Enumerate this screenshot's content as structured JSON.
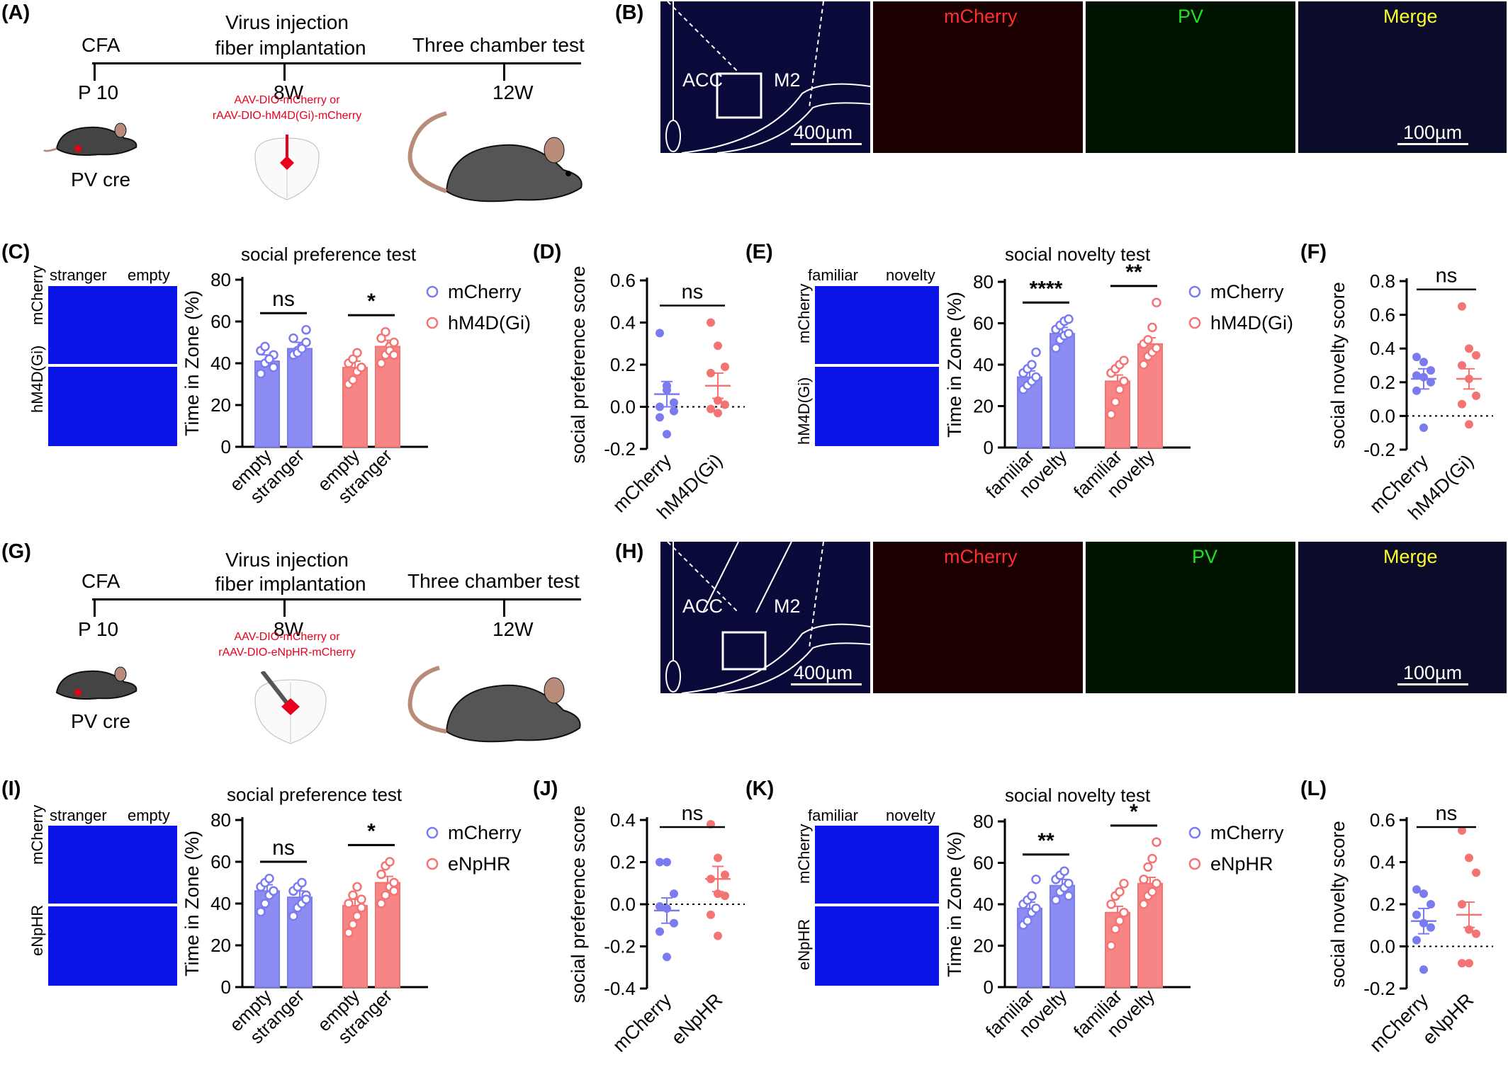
{
  "panels": {
    "A": "(A)",
    "B": "(B)",
    "C": "(C)",
    "D": "(D)",
    "E": "(E)",
    "F": "(F)",
    "G": "(G)",
    "H": "(H)",
    "I": "(I)",
    "J": "(J)",
    "K": "(K)",
    "L": "(L)"
  },
  "timelineA": {
    "cfa": "CFA",
    "p10": "P 10",
    "virus_line1": "Virus injection",
    "virus_line2": "fiber implantation",
    "w8": "8W",
    "three": "Three chamber test",
    "w12": "12W",
    "aav1": "AAV-DIO-mCherry or",
    "aav2": "rAAV-DIO-hM4D(Gi)-mCherry",
    "pvcre": "PV cre"
  },
  "timelineG": {
    "cfa": "CFA",
    "p10": "P 10",
    "virus_line1": "Virus injection",
    "virus_line2": "fiber implantation",
    "w8": "8W",
    "three": "Three chamber test",
    "w12": "12W",
    "aav1": "AAV-DIO-mCherry or",
    "aav2": "rAAV-DIO-eNpHR-mCherry",
    "pvcre": "PV cre"
  },
  "micro": {
    "acc": "ACC",
    "m2": "M2",
    "scale1": "400µm",
    "mcherry": "mCherry",
    "pv": "PV",
    "merge": "Merge",
    "scale2": "100µm"
  },
  "heatC": {
    "left": "stranger",
    "right": "empty",
    "top": "mCherry",
    "bottom": "hM4D(Gi)"
  },
  "heatE": {
    "left": "familiar",
    "right": "novelty",
    "top": "mCherry",
    "bottom": "hM4D(Gi)"
  },
  "heatI": {
    "left": "stranger",
    "right": "empty",
    "top": "mCherry",
    "bottom": "eNpHR"
  },
  "heatK": {
    "left": "familiar",
    "right": "novelty",
    "top": "mCherry",
    "bottom": "eNpHR"
  },
  "colors": {
    "blue": "#7b7bf0",
    "red": "#f47474",
    "blue_fill": "#8c8cf2",
    "red_fill": "#f78585"
  },
  "chart_data": [
    {
      "id": "C",
      "type": "bar",
      "title": "social preference test",
      "ylabel": "Time in Zone (%)",
      "ylim": [
        0,
        80
      ],
      "yticks": [
        0,
        20,
        40,
        60,
        80
      ],
      "categories": [
        "empty",
        "stranger",
        "empty",
        "stranger"
      ],
      "groups": [
        {
          "name": "mCherry",
          "color": "blue",
          "means": [
            41,
            47
          ]
        },
        {
          "name": "hM4D(Gi)",
          "color": "red",
          "means": [
            38,
            48
          ]
        }
      ],
      "points": [
        [
          35,
          40,
          42,
          44,
          46,
          48,
          42,
          38
        ],
        [
          44,
          46,
          48,
          50,
          52,
          45,
          47,
          56
        ],
        [
          30,
          32,
          36,
          38,
          40,
          42,
          45,
          38
        ],
        [
          40,
          44,
          48,
          50,
          52,
          55,
          46,
          44
        ]
      ],
      "sig": [
        "ns",
        "*"
      ]
    },
    {
      "id": "D",
      "type": "scatter",
      "ylabel": "social preference score",
      "ylim": [
        -0.2,
        0.6
      ],
      "yticks": [
        -0.2,
        0.0,
        0.2,
        0.4,
        0.6
      ],
      "categories": [
        "mCherry",
        "hM4D(Gi)"
      ],
      "means": [
        0.06,
        0.1
      ],
      "points": [
        [
          0.35,
          0.08,
          0.02,
          0.0,
          0.1,
          -0.02,
          -0.05,
          -0.13
        ],
        [
          0.4,
          0.29,
          0.19,
          0.16,
          0.03,
          0.01,
          -0.01,
          -0.03
        ]
      ],
      "sig": "ns"
    },
    {
      "id": "E",
      "type": "bar",
      "title": "social novelty test",
      "ylabel": "Time in Zone (%)",
      "ylim": [
        0,
        80
      ],
      "yticks": [
        0,
        20,
        40,
        60,
        80
      ],
      "categories": [
        "familiar",
        "novelty",
        "familiar",
        "novelty"
      ],
      "groups": [
        {
          "name": "mCherry",
          "color": "blue",
          "means": [
            34,
            55
          ]
        },
        {
          "name": "hM4D(Gi)",
          "color": "red",
          "means": [
            32,
            50
          ]
        }
      ],
      "points": [
        [
          28,
          30,
          32,
          34,
          36,
          38,
          40,
          46
        ],
        [
          48,
          52,
          54,
          55,
          57,
          59,
          61,
          62
        ],
        [
          16,
          22,
          28,
          32,
          36,
          38,
          40,
          42
        ],
        [
          40,
          44,
          46,
          48,
          50,
          52,
          58,
          70
        ]
      ],
      "sig": [
        "****",
        "**"
      ]
    },
    {
      "id": "F",
      "type": "scatter",
      "ylabel": "social novelty score",
      "ylim": [
        -0.2,
        0.8
      ],
      "yticks": [
        -0.2,
        0.0,
        0.2,
        0.4,
        0.6,
        0.8
      ],
      "categories": [
        "mCherry",
        "hM4D(Gi)"
      ],
      "means": [
        0.22,
        0.22
      ],
      "points": [
        [
          0.35,
          0.32,
          0.27,
          0.24,
          0.23,
          0.2,
          0.15,
          -0.07
        ],
        [
          0.65,
          0.4,
          0.36,
          0.3,
          0.22,
          0.12,
          0.07,
          -0.05
        ]
      ],
      "sig": "ns"
    },
    {
      "id": "I",
      "type": "bar",
      "title": "social preference test",
      "ylabel": "Time in Zone (%)",
      "ylim": [
        0,
        80
      ],
      "yticks": [
        0,
        20,
        40,
        60,
        80
      ],
      "categories": [
        "empty",
        "stranger",
        "empty",
        "stranger"
      ],
      "groups": [
        {
          "name": "mCherry",
          "color": "blue",
          "means": [
            46,
            43
          ]
        },
        {
          "name": "eNpHR",
          "color": "red",
          "means": [
            39,
            50
          ]
        }
      ],
      "points": [
        [
          36,
          40,
          44,
          46,
          48,
          50,
          52,
          46
        ],
        [
          34,
          38,
          40,
          44,
          46,
          48,
          50,
          42
        ],
        [
          26,
          30,
          34,
          38,
          40,
          44,
          48,
          42
        ],
        [
          40,
          44,
          48,
          50,
          54,
          58,
          60,
          46
        ]
      ],
      "sig": [
        "ns",
        "*"
      ]
    },
    {
      "id": "J",
      "type": "scatter",
      "ylabel": "social preference score",
      "ylim": [
        -0.4,
        0.4
      ],
      "yticks": [
        -0.4,
        -0.2,
        0.0,
        0.2,
        0.4
      ],
      "categories": [
        "mCherry",
        "eNpHR"
      ],
      "means": [
        -0.03,
        0.12
      ],
      "points": [
        [
          0.2,
          0.2,
          0.05,
          -0.01,
          -0.02,
          -0.09,
          -0.13,
          -0.25
        ],
        [
          0.38,
          0.22,
          0.14,
          0.12,
          0.05,
          0.04,
          -0.05,
          -0.15
        ]
      ],
      "sig": "ns"
    },
    {
      "id": "K",
      "type": "bar",
      "title": "social novelty test",
      "ylabel": "Time in Zone (%)",
      "ylim": [
        0,
        80
      ],
      "yticks": [
        0,
        20,
        40,
        60,
        80
      ],
      "categories": [
        "familiar",
        "novelty",
        "familiar",
        "novelty"
      ],
      "groups": [
        {
          "name": "mCherry",
          "color": "blue",
          "means": [
            38,
            49
          ]
        },
        {
          "name": "eNpHR",
          "color": "red",
          "means": [
            36,
            50
          ]
        }
      ],
      "points": [
        [
          30,
          32,
          36,
          38,
          40,
          42,
          44,
          52
        ],
        [
          42,
          46,
          48,
          50,
          52,
          54,
          56,
          44
        ],
        [
          20,
          28,
          32,
          36,
          40,
          44,
          46,
          50
        ],
        [
          40,
          44,
          46,
          50,
          52,
          58,
          62,
          70
        ]
      ],
      "sig": [
        "**",
        "*"
      ]
    },
    {
      "id": "L",
      "type": "scatter",
      "ylabel": "social novelty score",
      "ylim": [
        -0.2,
        0.6
      ],
      "yticks": [
        -0.2,
        0.0,
        0.2,
        0.4,
        0.6
      ],
      "categories": [
        "mCherry",
        "eNpHR"
      ],
      "means": [
        0.12,
        0.15
      ],
      "points": [
        [
          0.27,
          0.25,
          0.2,
          0.15,
          0.11,
          0.09,
          0.03,
          -0.11
        ],
        [
          0.55,
          0.42,
          0.35,
          0.2,
          0.08,
          0.06,
          -0.08,
          -0.08
        ]
      ],
      "sig": "ns"
    }
  ]
}
